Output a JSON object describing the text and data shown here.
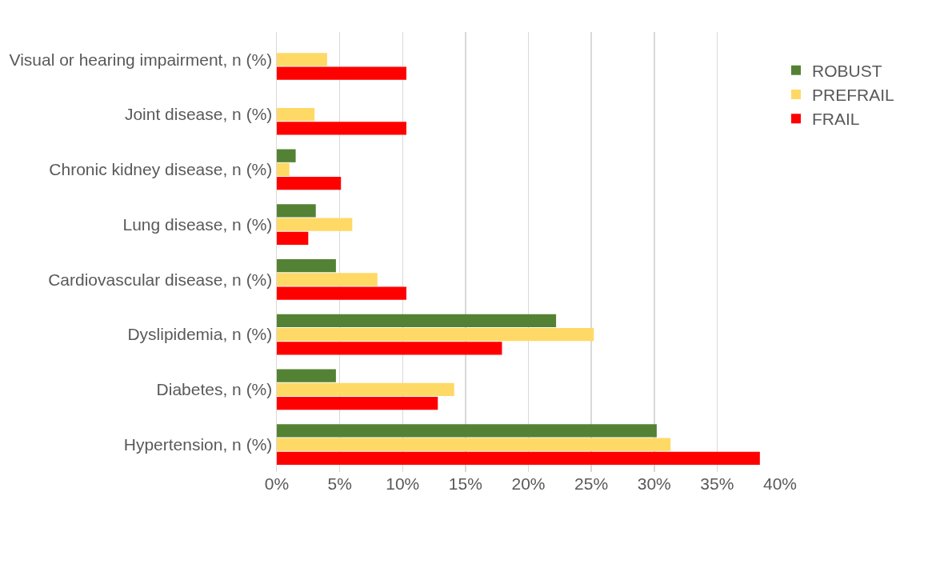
{
  "chart_data": {
    "type": "bar",
    "orientation": "horizontal",
    "categories": [
      "Visual or hearing impairment, n (%)",
      "Joint disease, n (%)",
      "Chronic kidney disease, n (%)",
      "Lung disease, n (%)",
      "Cardiovascular disease, n (%)",
      "Dyslipidemia, n (%)",
      "Diabetes, n (%)",
      "Hypertension, n (%)"
    ],
    "series": [
      {
        "name": "ROBUST",
        "color": "#548235",
        "values": [
          null,
          null,
          1.5,
          3.1,
          4.7,
          22.2,
          4.7,
          30.2
        ]
      },
      {
        "name": "PREFRAIL",
        "color": "#ffd966",
        "values": [
          4.0,
          3.0,
          1.0,
          6.0,
          8.0,
          25.2,
          14.1,
          31.3
        ]
      },
      {
        "name": "FRAIL",
        "color": "#ff0000",
        "values": [
          10.3,
          10.3,
          5.1,
          2.5,
          10.3,
          17.9,
          12.8,
          38.4
        ]
      }
    ],
    "xlim": [
      0,
      40
    ],
    "xticks": [
      {
        "value": 0,
        "label": "0%"
      },
      {
        "value": 5,
        "label": "5%"
      },
      {
        "value": 10,
        "label": "10%"
      },
      {
        "value": 15,
        "label": "15%"
      },
      {
        "value": 20,
        "label": "20%"
      },
      {
        "value": 25,
        "label": "25%"
      },
      {
        "value": 30,
        "label": "30%"
      },
      {
        "value": 35,
        "label": "35%"
      },
      {
        "value": 40,
        "label": "40%"
      }
    ],
    "grid": "x",
    "legend": "right"
  }
}
